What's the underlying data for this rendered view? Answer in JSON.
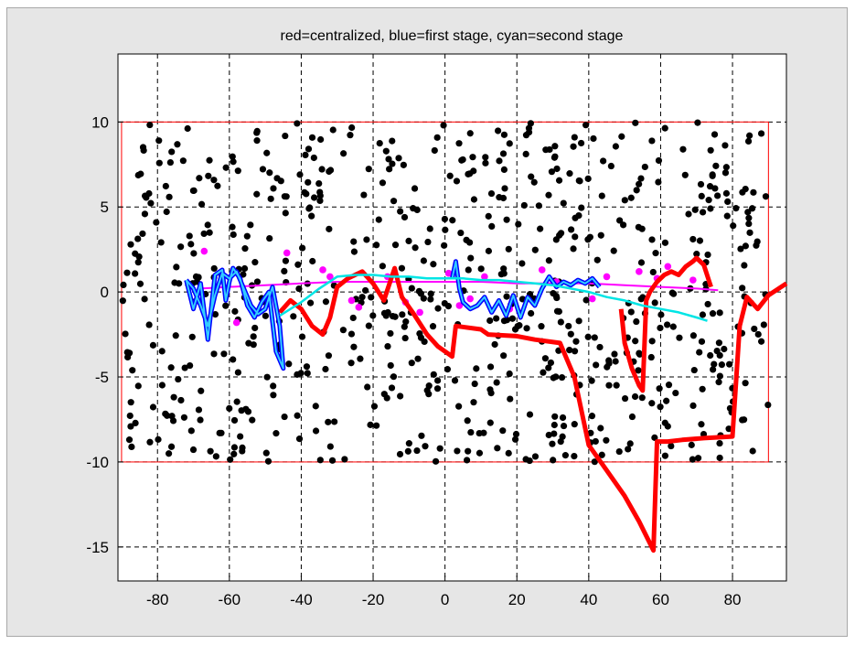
{
  "chart_data": {
    "type": "scatter",
    "title": "red=centralized, blue=first stage, cyan=second stage",
    "xlabel": "",
    "ylabel": "",
    "xlim": [
      -91,
      95
    ],
    "ylim": [
      -17,
      14
    ],
    "xticks": [
      -80,
      -60,
      -40,
      -20,
      0,
      20,
      40,
      60,
      80
    ],
    "yticks": [
      -15,
      -10,
      -5,
      0,
      5,
      10
    ],
    "grid": true,
    "boundary_rect": {
      "x": [
        -90,
        90
      ],
      "y": [
        -10,
        10
      ],
      "color": "#ff0000"
    },
    "colors": {
      "centralized": "#ff0000",
      "first_stage": "#0000ff",
      "first_stage_light": "#33ccff",
      "second_stage": "#00e5e5",
      "points": "#000000",
      "magenta": "#ff00ff",
      "figure_bg": "#e6e6e6",
      "axes_bg": "#ffffff"
    },
    "series": [
      {
        "name": "centralized",
        "color": "#ff0000",
        "x": [
          -46,
          -43,
          -40,
          -37,
          -34,
          -32,
          -30,
          -27,
          -23,
          -20,
          -17,
          -14,
          -12,
          -9,
          -5,
          -2,
          2,
          3,
          10,
          12,
          20,
          25,
          32,
          36,
          40,
          45,
          50,
          54,
          58,
          59,
          62,
          66,
          72,
          80,
          82,
          84,
          87,
          90,
          95
        ],
        "y": [
          -1.2,
          -0.5,
          -1,
          -2,
          -2.5,
          -1.5,
          0.3,
          0.8,
          1.2,
          0.5,
          -0.5,
          1.4,
          -0.3,
          -1.2,
          -2.5,
          -3.2,
          -3.8,
          -2,
          -2.2,
          -2.5,
          -2.6,
          -2.8,
          -3,
          -5,
          -9,
          -10.5,
          -12,
          -13.5,
          -15.2,
          -8.8,
          -8.8,
          -8.7,
          -8.6,
          -8.5,
          -2,
          -0.3,
          -1,
          -0.2,
          0.5
        ]
      },
      {
        "name": "centralized-branch",
        "color": "#ff0000",
        "x": [
          49,
          50,
          52,
          54,
          55,
          56,
          57,
          59,
          61,
          63,
          65,
          67,
          69,
          70,
          72,
          74
        ],
        "y": [
          -1,
          -3,
          -4.5,
          -5.5,
          -5.8,
          -0.5,
          0,
          0.6,
          1.0,
          1.2,
          1.0,
          1.5,
          1.8,
          2.0,
          1.6,
          0.3
        ]
      },
      {
        "name": "first stage",
        "color": "#0000ff",
        "x": [
          -72,
          -70,
          -68,
          -66,
          -64,
          -62,
          -61,
          -60,
          -59,
          -57,
          -55,
          -53,
          -51,
          -49,
          -47,
          -45,
          -46,
          -48,
          -50,
          -52,
          -54,
          -56,
          -58,
          -60,
          -62,
          -64,
          -66,
          -68,
          -70,
          -72
        ],
        "y": [
          0.7,
          -1,
          0.5,
          -2.8,
          1,
          1.3,
          -0.5,
          0.6,
          1.4,
          0.8,
          -0.8,
          -1.5,
          -0.6,
          0,
          -3.5,
          -4.5,
          -2,
          0.3,
          -1,
          -1.3,
          -0.8,
          0.2,
          1.2,
          0.8,
          1.1,
          -0.2,
          -2,
          -0.8,
          0.2,
          0.7
        ]
      },
      {
        "name": "first stage (center)",
        "color": "#0000ff",
        "x": [
          2,
          3,
          4,
          5,
          7,
          9,
          11,
          13,
          15,
          17,
          19,
          21,
          23,
          25,
          27,
          29,
          31,
          33,
          35,
          37,
          39,
          41,
          43
        ],
        "y": [
          0.8,
          1.8,
          0.2,
          -0.6,
          -1.0,
          -0.8,
          -0.3,
          -1.2,
          -0.5,
          -1.4,
          -0.2,
          -1.5,
          -0.3,
          -0.8,
          0.2,
          0.9,
          0.3,
          0.6,
          0.4,
          0.7,
          0.5,
          0.8,
          0.3
        ]
      },
      {
        "name": "second stage",
        "color": "#00e5e5",
        "x": [
          -46,
          -40,
          -35,
          -30,
          -25,
          -20,
          -15,
          -10,
          -5,
          0,
          5,
          10,
          15,
          20,
          25,
          30,
          35,
          40,
          45,
          50,
          55,
          60,
          65,
          70,
          73
        ],
        "y": [
          -1.4,
          -0.6,
          0.2,
          0.9,
          1.0,
          1.0,
          0.9,
          0.9,
          0.8,
          0.8,
          0.8,
          0.7,
          0.7,
          0.6,
          0.5,
          0.4,
          0.2,
          0.0,
          -0.3,
          -0.5,
          -0.8,
          -1.0,
          -1.2,
          -1.5,
          -1.7
        ]
      },
      {
        "name": "magenta path",
        "color": "#ff00ff",
        "x": [
          -68,
          -60,
          -50,
          -40,
          -30,
          -20,
          -10,
          0,
          10,
          20,
          30,
          40,
          50,
          60,
          70,
          76
        ],
        "y": [
          0.2,
          0.3,
          0.4,
          0.5,
          0.6,
          0.6,
          0.6,
          0.6,
          0.6,
          0.5,
          0.5,
          0.5,
          0.4,
          0.3,
          0.2,
          0.1
        ]
      },
      {
        "name": "magenta points",
        "color": "#ff00ff",
        "x": [
          -67,
          -58,
          -44,
          -34,
          -32,
          -26,
          -24,
          -16,
          -11,
          -7,
          1,
          4,
          7,
          11,
          18,
          27,
          31,
          41,
          45,
          54,
          59,
          62,
          69
        ],
        "y": [
          2.4,
          -1.8,
          2.3,
          1.3,
          0.9,
          -0.5,
          -0.9,
          0.9,
          -0.6,
          -1.2,
          1.1,
          -0.8,
          -0.4,
          0.9,
          -1.0,
          1.3,
          0.6,
          -0.4,
          0.9,
          1.2,
          0.8,
          1.5,
          0.7
        ]
      },
      {
        "name": "random points",
        "color": "#000000",
        "count": 700,
        "xrange": [
          -90,
          90
        ],
        "yrange": [
          -10,
          10
        ]
      }
    ]
  }
}
